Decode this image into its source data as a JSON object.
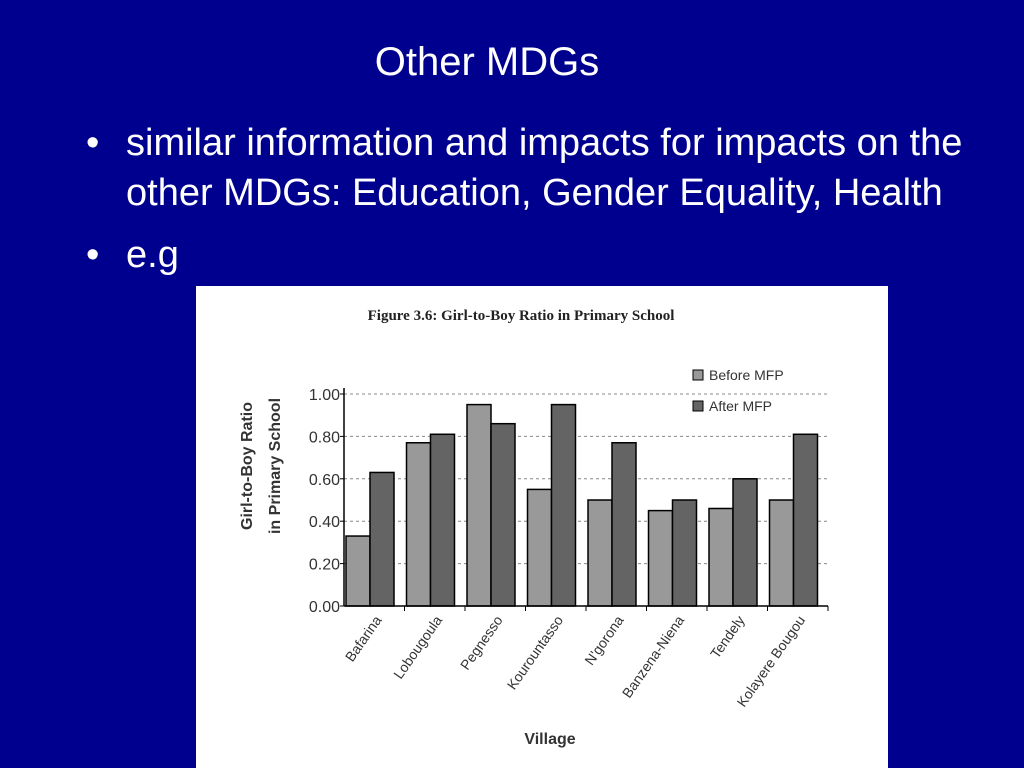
{
  "slide": {
    "title": "Other MDGs",
    "bullets": [
      "similar information and impacts for impacts on the other MDGs: Education, Gender Equality, Health",
      "e.g"
    ]
  },
  "chart_data": {
    "type": "bar",
    "title": "Figure 3.6: Girl-to-Boy Ratio in Primary School",
    "xlabel": "Village",
    "ylabel": "Girl-to-Boy Ratio in Primary School",
    "ylabel_lines": [
      "Girl-to-Boy  Ratio",
      "in  Primary  School"
    ],
    "ylim": [
      0,
      1
    ],
    "yticks": [
      "0.00",
      "0.20",
      "0.40",
      "0.60",
      "0.80",
      "1.00"
    ],
    "grid": true,
    "legend_position": "top-right",
    "categories": [
      "Bafarina",
      "Lobougoula",
      "Pegnesso",
      "Kourountasso",
      "N'gorona",
      "Banzena-Niena",
      "Tendely",
      "Kolayere Bougou"
    ],
    "series": [
      {
        "name": "Before MFP",
        "values": [
          0.33,
          0.77,
          0.95,
          0.55,
          0.5,
          0.45,
          0.46,
          0.5
        ]
      },
      {
        "name": "After MFP",
        "values": [
          0.63,
          0.81,
          0.86,
          0.95,
          0.77,
          0.5,
          0.6,
          0.81
        ]
      }
    ],
    "colors": {
      "before": "#999999",
      "after": "#646464",
      "text": "#333333"
    }
  }
}
